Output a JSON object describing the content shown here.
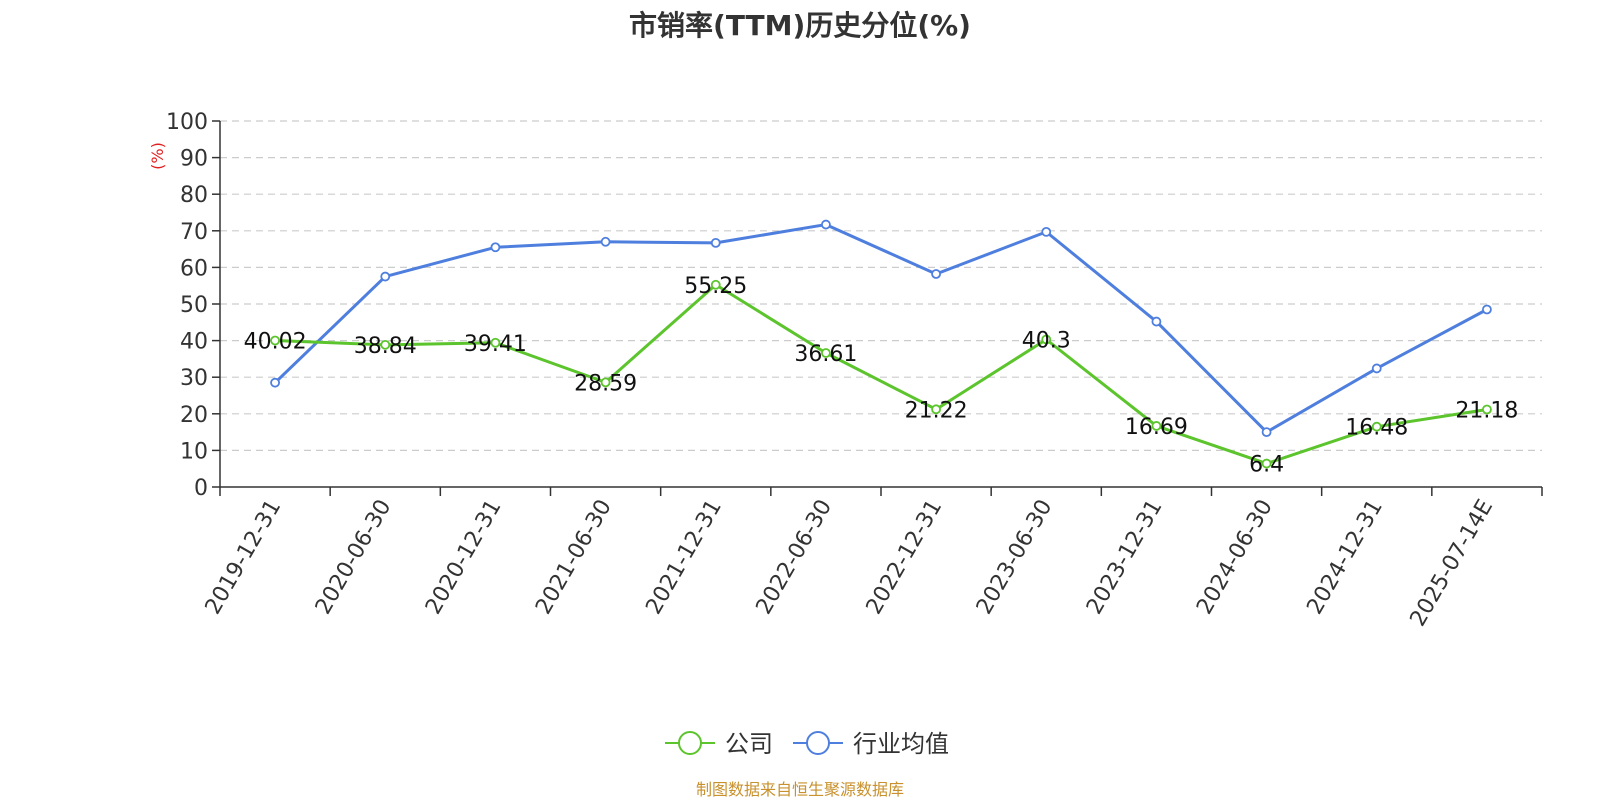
{
  "source_note": "制图数据来自恒生聚源数据库",
  "chart_data": {
    "type": "line",
    "title": "市销率(TTM)历史分位(%)",
    "xlabel": "",
    "ylabel": "(%)",
    "ylim": [
      0,
      100
    ],
    "yticks": [
      0,
      10,
      20,
      30,
      40,
      50,
      60,
      70,
      80,
      90,
      100
    ],
    "grid": true,
    "legend_position": "bottom-center",
    "categories": [
      "2019-12-31",
      "2020-06-30",
      "2020-12-31",
      "2021-06-30",
      "2021-12-31",
      "2022-06-30",
      "2022-12-31",
      "2023-06-30",
      "2023-12-31",
      "2024-06-30",
      "2024-12-31",
      "2025-07-14E"
    ],
    "series": [
      {
        "name": "公司",
        "color": "#5cc42c",
        "show_labels": true,
        "values": [
          40.02,
          38.84,
          39.41,
          28.59,
          55.25,
          36.61,
          21.22,
          40.3,
          16.69,
          6.4,
          16.48,
          21.18
        ],
        "labels": [
          "40.02",
          "38.84",
          "39.41",
          "28.59",
          "55.25",
          "36.61",
          "21.22",
          "40.3",
          "16.69",
          "6.4",
          "16.48",
          "21.18"
        ]
      },
      {
        "name": "行业均值",
        "color": "#4f7fde",
        "show_labels": false,
        "values": [
          28.5,
          57.5,
          65.5,
          67.0,
          66.7,
          71.7,
          58.2,
          69.7,
          45.2,
          15.0,
          32.4,
          48.5
        ]
      }
    ]
  }
}
